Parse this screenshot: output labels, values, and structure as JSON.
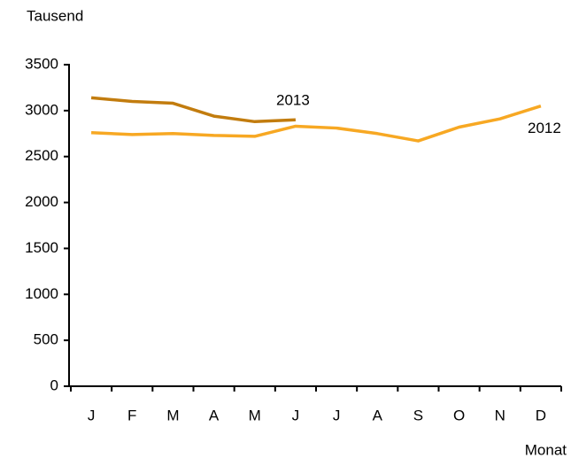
{
  "chart_data": {
    "type": "line",
    "y_axis_label": "Tausend",
    "x_axis_label": "Monat",
    "categories": [
      "J",
      "F",
      "M",
      "A",
      "M",
      "J",
      "J",
      "A",
      "S",
      "O",
      "N",
      "D"
    ],
    "series": [
      {
        "name": "2013",
        "color": "#c27c0e",
        "values": [
          3140,
          3100,
          3080,
          2940,
          2880,
          2900,
          null,
          null,
          null,
          null,
          null,
          null
        ]
      },
      {
        "name": "2012",
        "color": "#f7a823",
        "values": [
          2760,
          2740,
          2750,
          2730,
          2720,
          2830,
          2810,
          2750,
          2670,
          2820,
          2910,
          3050
        ]
      }
    ],
    "ylim": [
      0,
      3500
    ],
    "yticks": [
      0,
      500,
      1000,
      1500,
      2000,
      2500,
      3000,
      3500
    ],
    "grid": false
  }
}
